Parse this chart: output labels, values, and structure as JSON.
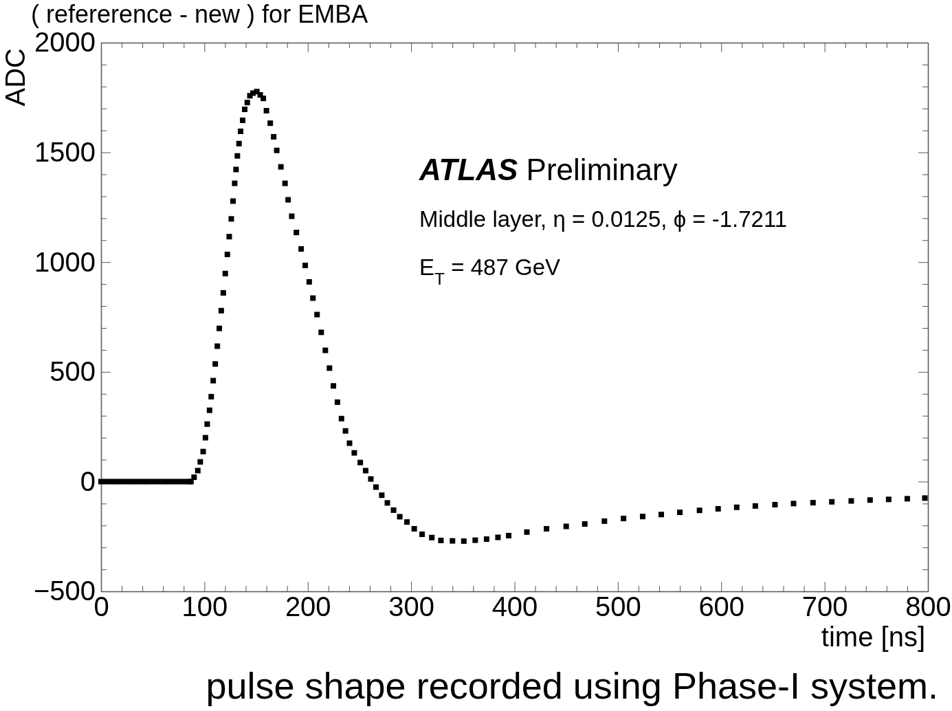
{
  "chart_data": {
    "type": "scatter",
    "title": "( refererence - new ) for EMBA",
    "xlabel": "time [ns]",
    "ylabel": "ADC",
    "annotations": [
      "ATLAS Preliminary",
      "Middle layer, η = 0.0125, ϕ = -1.7211",
      "E$_{T}$ = 487 GeV",
      "pulse shape recorded using Phase-I system."
    ],
    "marker": "square",
    "xlim": [
      0,
      800
    ],
    "ylim": [
      -500,
      2000
    ],
    "xticks": [
      0,
      {
        "value": 20,
        "label": null
      },
      {
        "value": 40,
        "label": null
      },
      {
        "value": 60,
        "label": null
      },
      {
        "value": 80,
        "label": null
      },
      100,
      {
        "value": 120,
        "label": null
      },
      {
        "value": 140,
        "label": null
      },
      {
        "value": 160,
        "label": null
      },
      {
        "value": 180,
        "label": null
      },
      200,
      {
        "value": 220,
        "label": null
      },
      {
        "value": 240,
        "label": null
      },
      {
        "value": 260,
        "label": null
      },
      {
        "value": 280,
        "label": null
      },
      300,
      {
        "value": 320,
        "label": null
      },
      {
        "value": 340,
        "label": null
      },
      {
        "value": 360,
        "label": null
      },
      {
        "value": 380,
        "label": null
      },
      400,
      {
        "value": 420,
        "label": null
      },
      {
        "value": 440,
        "label": null
      },
      {
        "value": 460,
        "label": null
      },
      {
        "value": 480,
        "label": null
      },
      500,
      {
        "value": 520,
        "label": null
      },
      {
        "value": 540,
        "label": null
      },
      {
        "value": 560,
        "label": null
      },
      {
        "value": 580,
        "label": null
      },
      600,
      {
        "value": 620,
        "label": null
      },
      {
        "value": 640,
        "label": null
      },
      {
        "value": 660,
        "label": null
      },
      {
        "value": 680,
        "label": null
      },
      700,
      {
        "value": 720,
        "label": null
      },
      {
        "value": 740,
        "label": null
      },
      {
        "value": 760,
        "label": null
      },
      {
        "value": 780,
        "label": null
      },
      800
    ],
    "yticks": [
      {
        "value": -500,
        "label": "−500"
      },
      {
        "value": -400,
        "label": null
      },
      {
        "value": -300,
        "label": null
      },
      {
        "value": -200,
        "label": null
      },
      {
        "value": -100,
        "label": null
      },
      0,
      {
        "value": 100,
        "label": null
      },
      {
        "value": 200,
        "label": null
      },
      {
        "value": 300,
        "label": null
      },
      {
        "value": 400,
        "label": null
      },
      500,
      {
        "value": 600,
        "label": null
      },
      {
        "value": 700,
        "label": null
      },
      {
        "value": 800,
        "label": null
      },
      {
        "value": 900,
        "label": null
      },
      1000,
      {
        "value": 1100,
        "label": null
      },
      {
        "value": 1200,
        "label": null
      },
      {
        "value": 1300,
        "label": null
      },
      {
        "value": 1400,
        "label": null
      },
      1500,
      {
        "value": 1600,
        "label": null
      },
      {
        "value": 1700,
        "label": null
      },
      {
        "value": 1800,
        "label": null
      },
      {
        "value": 1900,
        "label": null
      },
      2000
    ],
    "series": [
      {
        "color": "#000000",
        "x": [
          0,
          5,
          10,
          15,
          20,
          25,
          30,
          35,
          40,
          45,
          50,
          55,
          60,
          65,
          70,
          75,
          80,
          85,
          87,
          90,
          93.6,
          96,
          98.8,
          101,
          102.7,
          105,
          106.6,
          108.5,
          110.5,
          112.5,
          114.4,
          116.3,
          118.3,
          120.2,
          122.2,
          124,
          126,
          127.7,
          129.3,
          130.6,
          131.9,
          133.5,
          135,
          137,
          139,
          141.5,
          144,
          147,
          150.7,
          154,
          157,
          160,
          163.7,
          167,
          170,
          174,
          178,
          181,
          184.5,
          189,
          193.6,
          197.5,
          201.4,
          205,
          209,
          213,
          217,
          221,
          224.8,
          228.7,
          232.6,
          236.5,
          240.4,
          245,
          250.8,
          256,
          261,
          266,
          271.6,
          277,
          283,
          289,
          296,
          303,
          310.6,
          320,
          328.8,
          340,
          351,
          362,
          373,
          384,
          394.4,
          412,
          431,
          450,
          468,
          487,
          505.5,
          524,
          542,
          560,
          579,
          597,
          615,
          633,
          652,
          670,
          688.8,
          707,
          725.8,
          744,
          762,
          780,
          797
        ],
        "values": [
          0,
          0,
          0,
          0,
          0,
          0,
          0,
          0,
          0,
          0,
          0,
          0,
          0,
          0,
          0,
          0,
          0,
          0,
          0,
          20,
          50,
          90,
          137,
          200,
          262,
          325,
          387,
          460,
          536,
          617,
          698,
          779,
          860,
          948,
          1035,
          1116,
          1197,
          1278,
          1359,
          1422,
          1484,
          1540,
          1596,
          1646,
          1696,
          1727,
          1758,
          1770,
          1777,
          1762,
          1746,
          1690,
          1633,
          1571,
          1509,
          1434,
          1359,
          1284,
          1209,
          1135,
          1060,
          985,
          910,
          836,
          761,
          680,
          598,
          517,
          436,
          362,
          287,
          231,
          175,
          131,
          87,
          50,
          12,
          -25,
          -62,
          -97,
          -130,
          -160,
          -184,
          -215,
          -240,
          -255,
          -268,
          -270,
          -271,
          -267,
          -262,
          -254,
          -246,
          -230,
          -215,
          -204,
          -193,
          -180,
          -168,
          -159,
          -150,
          -140,
          -131,
          -124,
          -117,
          -111,
          -105,
          -100,
          -96,
          -92,
          -88,
          -84,
          -81,
          -78,
          -75
        ]
      }
    ]
  }
}
